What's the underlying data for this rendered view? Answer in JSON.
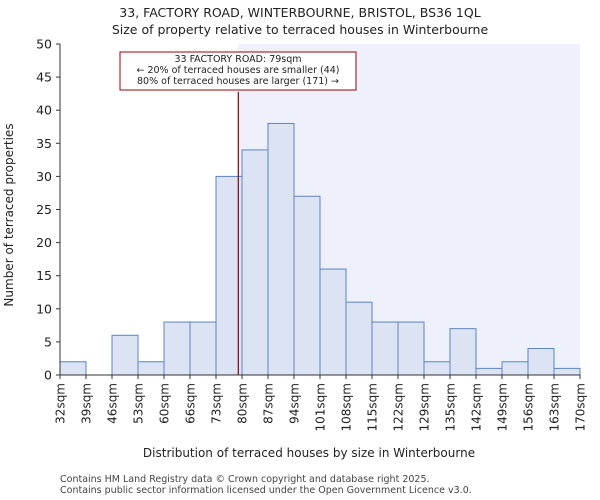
{
  "chart_data": {
    "type": "bar",
    "title_line1": "33, FACTORY ROAD, WINTERBOURNE, BRISTOL, BS36 1QL",
    "title_line2": "Size of property relative to terraced houses in Winterbourne",
    "xlabel": "Distribution of terraced houses by size in Winterbourne",
    "ylabel": "Number of terraced properties",
    "ylim": [
      0,
      50
    ],
    "yticks": [
      0,
      5,
      10,
      15,
      20,
      25,
      30,
      35,
      40,
      45,
      50
    ],
    "bin_edges": [
      32,
      39,
      46,
      53,
      60,
      66,
      73,
      80,
      87,
      94,
      101,
      108,
      115,
      122,
      129,
      135,
      142,
      149,
      156,
      163,
      170
    ],
    "xtick_labels": [
      "32sqm",
      "39sqm",
      "46sqm",
      "53sqm",
      "60sqm",
      "66sqm",
      "73sqm",
      "80sqm",
      "87sqm",
      "94sqm",
      "101sqm",
      "108sqm",
      "115sqm",
      "122sqm",
      "129sqm",
      "135sqm",
      "142sqm",
      "149sqm",
      "156sqm",
      "163sqm",
      "170sqm"
    ],
    "values": [
      2,
      0,
      6,
      2,
      8,
      8,
      30,
      34,
      38,
      27,
      16,
      11,
      8,
      8,
      2,
      7,
      1,
      2,
      4,
      1
    ],
    "marker": {
      "value": 79,
      "unit": "sqm"
    },
    "annotation": {
      "line1": "33 FACTORY ROAD: 79sqm",
      "line2": "← 20% of terraced houses are smaller (44)",
      "line3": "80% of terraced houses are larger (171) →"
    },
    "colors": {
      "bar_fill": "#dce3f3",
      "bar_stroke": "#5b84c4",
      "highlight_bg": "#eef1f9",
      "marker": "#8b0000",
      "annotation_border": "#a00000"
    }
  },
  "footer": {
    "line1": "Contains HM Land Registry data © Crown copyright and database right 2025.",
    "line2": "Contains public sector information licensed under the Open Government Licence v3.0."
  }
}
